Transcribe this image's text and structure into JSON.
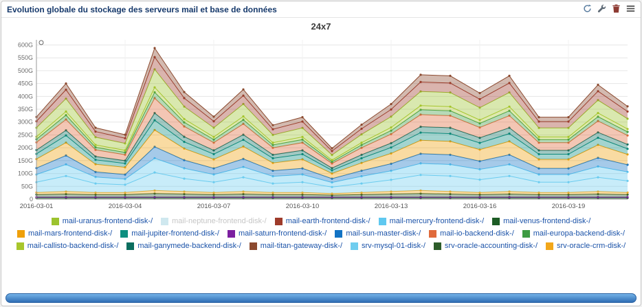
{
  "widget": {
    "title": "Evolution globale du stockage des serveurs mail et base de données",
    "toolbar_icons": [
      "refresh",
      "wrench",
      "trash",
      "menu"
    ]
  },
  "colors": {
    "title_navy": "#16396b",
    "legend_link_blue": "#1a52a8",
    "disabled_legend_gray": "#c6c6c6",
    "footer_bar_blue_top": "#74b3e8",
    "footer_bar_blue_bottom": "#2f6db4"
  },
  "chart_data": {
    "type": "area",
    "stacked": true,
    "title": "24x7",
    "xlabel": "",
    "ylabel": "",
    "y_unit": "G",
    "ylim": [
      0,
      620
    ],
    "grid": true,
    "legend_position": "bottom",
    "y_ticks": [
      "0",
      "50G",
      "100G",
      "150G",
      "200G",
      "250G",
      "300G",
      "350G",
      "400G",
      "450G",
      "500G",
      "550G",
      "600G"
    ],
    "x": [
      "2016-03-01",
      "2016-03-02",
      "2016-03-03",
      "2016-03-04",
      "2016-03-05",
      "2016-03-06",
      "2016-03-07",
      "2016-03-08",
      "2016-03-09",
      "2016-03-10",
      "2016-03-11",
      "2016-03-12",
      "2016-03-13",
      "2016-03-14",
      "2016-03-15",
      "2016-03-16",
      "2016-03-17",
      "2016-03-18",
      "2016-03-19",
      "2016-03-20",
      "2016-03-21"
    ],
    "x_tick_labels": [
      "2016-03-01",
      "2016-03-04",
      "2016-03-07",
      "2016-03-10",
      "2016-03-13",
      "2016-03-16",
      "2016-03-19"
    ],
    "stack_order": [
      "mail-venus-frontend-disk-/",
      "mail-saturn-frontend-disk-/",
      "srv-oracle-accounting-disk-/",
      "srv-oracle-crm-disk-/",
      "srv-mysql-01-disk-/",
      "mail-mercury-frontend-disk-/",
      "mail-sun-master-disk-/",
      "mail-mars-frontend-disk-/",
      "mail-jupiter-frontend-disk-/",
      "mail-ganymede-backend-disk-/",
      "mail-io-backend-disk-/",
      "mail-europa-backend-disk-/",
      "mail-callisto-backend-disk-/",
      "mail-uranus-frontend-disk-/",
      "mail-earth-frontend-disk-/",
      "mail-titan-gateway-disk-/"
    ],
    "series": [
      {
        "name": "mail-uranus-frontend-disk-/",
        "color": "#9cc32e",
        "disabled": false,
        "values": [
          35,
          50,
          30,
          27,
          70,
          48,
          36,
          48,
          30,
          35,
          20,
          32,
          42,
          55,
          55,
          48,
          55,
          35,
          35,
          50,
          40
        ]
      },
      {
        "name": "mail-neptune-frontend-disk-/",
        "color": "#cfe8ef",
        "disabled": true,
        "values": []
      },
      {
        "name": "mail-earth-frontend-disk-/",
        "color": "#9e3b2b",
        "disabled": false,
        "values": [
          25,
          35,
          22,
          20,
          48,
          33,
          25,
          33,
          22,
          25,
          15,
          22,
          28,
          37,
          37,
          33,
          37,
          25,
          25,
          35,
          28
        ]
      },
      {
        "name": "mail-mercury-frontend-disk-/",
        "color": "#5fc8f0",
        "disabled": false,
        "values": [
          30,
          45,
          25,
          22,
          55,
          40,
          30,
          40,
          28,
          30,
          18,
          28,
          35,
          45,
          45,
          40,
          45,
          30,
          30,
          42,
          35
        ]
      },
      {
        "name": "mail-venus-frontend-disk-/",
        "color": "#1d5c25",
        "disabled": false,
        "values": [
          5,
          5,
          5,
          5,
          5,
          5,
          5,
          5,
          5,
          5,
          5,
          5,
          5,
          5,
          5,
          5,
          5,
          5,
          5,
          5,
          5
        ]
      },
      {
        "name": "mail-mars-frontend-disk-/",
        "color": "#efa00b",
        "disabled": false,
        "values": [
          35,
          50,
          30,
          28,
          65,
          45,
          35,
          48,
          30,
          35,
          20,
          30,
          40,
          52,
          52,
          45,
          52,
          35,
          35,
          50,
          40
        ]
      },
      {
        "name": "mail-jupiter-frontend-disk-/",
        "color": "#0e8f80",
        "disabled": false,
        "values": [
          20,
          28,
          17,
          15,
          38,
          26,
          20,
          26,
          18,
          20,
          12,
          18,
          23,
          30,
          30,
          26,
          30,
          20,
          20,
          28,
          22
        ]
      },
      {
        "name": "mail-saturn-frontend-disk-/",
        "color": "#7c1fa0",
        "disabled": false,
        "values": [
          3,
          3,
          3,
          3,
          3,
          3,
          3,
          3,
          3,
          3,
          3,
          3,
          3,
          3,
          3,
          3,
          3,
          3,
          3,
          3,
          3
        ]
      },
      {
        "name": "mail-sun-master-disk-/",
        "color": "#1273c4",
        "disabled": false,
        "values": [
          25,
          35,
          20,
          18,
          45,
          32,
          24,
          32,
          22,
          24,
          15,
          22,
          28,
          38,
          38,
          32,
          38,
          24,
          24,
          34,
          28
        ]
      },
      {
        "name": "mail-io-backend-disk-/",
        "color": "#e06a3b",
        "disabled": false,
        "values": [
          30,
          42,
          26,
          23,
          58,
          40,
          30,
          42,
          27,
          30,
          18,
          27,
          35,
          47,
          47,
          40,
          47,
          30,
          30,
          44,
          35
        ]
      },
      {
        "name": "mail-europa-backend-disk-/",
        "color": "#3e9b43",
        "disabled": false,
        "values": [
          12,
          17,
          10,
          9,
          23,
          16,
          12,
          16,
          11,
          12,
          7,
          11,
          14,
          19,
          19,
          16,
          19,
          12,
          12,
          17,
          14
        ]
      },
      {
        "name": "mail-callisto-backend-disk-/",
        "color": "#a8c62c",
        "disabled": false,
        "values": [
          10,
          14,
          9,
          8,
          19,
          13,
          10,
          13,
          9,
          10,
          6,
          9,
          12,
          16,
          16,
          13,
          16,
          10,
          10,
          14,
          11
        ]
      },
      {
        "name": "mail-ganymede-backend-disk-/",
        "color": "#0b6e5f",
        "disabled": false,
        "values": [
          15,
          20,
          13,
          11,
          28,
          20,
          15,
          20,
          14,
          15,
          9,
          14,
          17,
          23,
          23,
          20,
          23,
          15,
          15,
          21,
          17
        ]
      },
      {
        "name": "mail-titan-gateway-disk-/",
        "color": "#8c4a2f",
        "disabled": false,
        "values": [
          17,
          24,
          15,
          14,
          35,
          24,
          18,
          24,
          16,
          17,
          11,
          16,
          21,
          28,
          28,
          24,
          28,
          17,
          17,
          25,
          20
        ]
      },
      {
        "name": "srv-mysql-01-disk-/",
        "color": "#6fcdef",
        "disabled": false,
        "values": [
          40,
          60,
          35,
          30,
          70,
          50,
          40,
          55,
          35,
          40,
          25,
          35,
          45,
          60,
          60,
          50,
          60,
          40,
          40,
          55,
          45
        ]
      },
      {
        "name": "srv-oracle-accounting-disk-/",
        "color": "#2d5d2a",
        "disabled": false,
        "values": [
          10,
          12,
          10,
          10,
          14,
          12,
          10,
          12,
          10,
          10,
          8,
          10,
          12,
          14,
          12,
          10,
          12,
          10,
          10,
          12,
          10
        ]
      },
      {
        "name": "srv-oracle-crm-disk-/",
        "color": "#f2a71b",
        "disabled": false,
        "values": [
          8,
          10,
          8,
          8,
          12,
          10,
          8,
          10,
          8,
          8,
          6,
          8,
          10,
          12,
          10,
          8,
          10,
          8,
          8,
          10,
          8
        ]
      }
    ]
  }
}
